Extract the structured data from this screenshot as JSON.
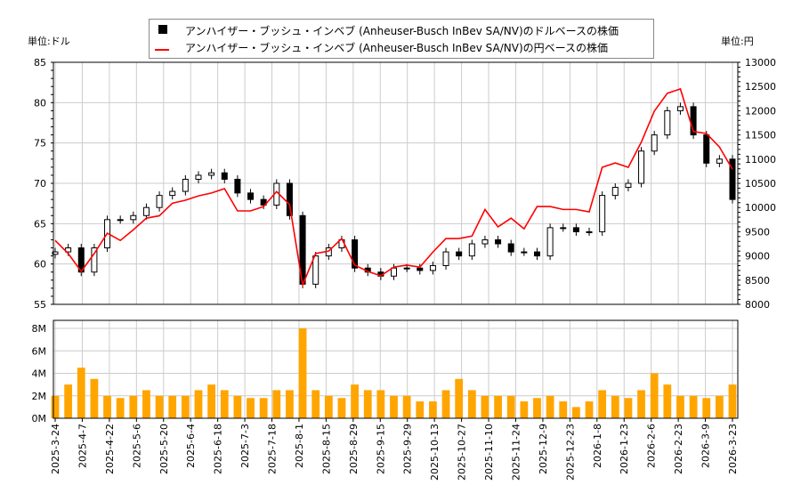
{
  "chart_data": {
    "type": "candlestick+line+bar",
    "legend": [
      {
        "label": "アンハイザー・ブッシュ・インベブ (Anheuser-Busch InBev SA/NV)のドルベースの株価",
        "color": "#000000",
        "marker": "square"
      },
      {
        "label": "アンハイザー・ブッシュ・インベブ (Anheuser-Busch InBev SA/NV)の円ベースの株価",
        "color": "#ff0000",
        "marker": "line"
      }
    ],
    "legend_position": "top-center",
    "left_unit": "単位:ドル",
    "right_unit": "単位:円",
    "left_ylim": [
      55,
      85
    ],
    "left_ticks": [
      "55",
      "60",
      "65",
      "70",
      "75",
      "80",
      "85"
    ],
    "right_ylim": [
      8000,
      13000
    ],
    "right_ticks": [
      "8000",
      "8500",
      "9000",
      "9500",
      "10000",
      "10500",
      "11000",
      "11500",
      "12000",
      "12500",
      "13000"
    ],
    "volume_ylim": [
      0,
      8
    ],
    "volume_ticks": [
      "0M",
      "2M",
      "4M",
      "6M",
      "8M"
    ],
    "volume_color": "#ffa500",
    "grid": true,
    "x_ticks": [
      "2025-3-24",
      "2025-4-7",
      "2025-4-22",
      "2025-5-6",
      "2025-5-20",
      "2025-6-4",
      "2025-6-18",
      "2025-7-3",
      "2025-7-18",
      "2025-8-1",
      "2025-8-15",
      "2025-8-29",
      "2025-9-15",
      "2025-9-29",
      "2025-10-13",
      "2025-10-27",
      "2025-11-10",
      "2025-11-24",
      "2025-12-9",
      "2025-12-23",
      "2026-1-8",
      "2026-1-23",
      "2026-2-6",
      "2026-2-23",
      "2026-3-9",
      "2026-3-23"
    ],
    "usd_close": [
      61.5,
      62,
      59,
      62,
      65.5,
      65.5,
      66,
      67,
      68.5,
      69,
      70.5,
      71,
      71.3,
      70.5,
      68.8,
      68,
      67.3,
      70,
      66,
      57.5,
      61,
      62,
      63,
      59.5,
      59,
      58.5,
      59.5,
      59.5,
      59.2,
      59.8,
      61.5,
      61,
      62.5,
      63,
      62.5,
      61.5,
      61.5,
      61,
      64.5,
      64.5,
      64,
      64,
      68.5,
      69.5,
      70,
      74,
      76,
      79,
      79.5,
      76,
      72.5,
      73,
      68
    ],
    "jpy_close": [
      9320,
      9050,
      8680,
      9050,
      9470,
      9320,
      9540,
      9780,
      9830,
      10090,
      10150,
      10240,
      10300,
      10390,
      9930,
      9930,
      10020,
      10330,
      10060,
      8400,
      9050,
      9100,
      9360,
      8810,
      8680,
      8590,
      8770,
      8810,
      8770,
      9080,
      9360,
      9360,
      9410,
      9960,
      9600,
      9780,
      9560,
      10020,
      10020,
      9960,
      9960,
      9910,
      10830,
      10920,
      10830,
      11350,
      11990,
      12360,
      12450,
      11570,
      11530,
      11250,
      10790
    ],
    "volume_m": [
      2.0,
      3.0,
      4.5,
      3.5,
      2.0,
      1.8,
      2.0,
      2.5,
      2.0,
      2.0,
      2.0,
      2.5,
      3.0,
      2.5,
      2.0,
      1.8,
      1.8,
      2.5,
      2.5,
      8.0,
      2.5,
      2.0,
      1.8,
      3.0,
      2.5,
      2.5,
      2.0,
      2.0,
      1.5,
      1.5,
      2.5,
      3.5,
      2.5,
      2.0,
      2.0,
      2.0,
      1.5,
      1.8,
      2.0,
      1.5,
      1.0,
      1.5,
      2.5,
      2.0,
      1.8,
      2.5,
      4.0,
      3.0,
      2.0,
      2.0,
      1.8,
      2.0,
      3.0
    ]
  }
}
